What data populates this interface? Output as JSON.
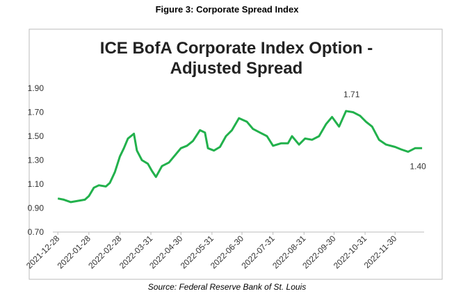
{
  "figure_title": "Figure 3: Corporate Spread Index",
  "source": "Source: Federal Reserve Bank of St. Louis",
  "chart_data": {
    "type": "line",
    "title": "ICE BofA Corporate Index Option - Adjusted Spread",
    "x": [
      "2021-12-28",
      "2022-01-03",
      "2022-01-10",
      "2022-01-17",
      "2022-01-24",
      "2022-01-28",
      "2022-02-02",
      "2022-02-07",
      "2022-02-14",
      "2022-02-18",
      "2022-02-23",
      "2022-02-28",
      "2022-03-04",
      "2022-03-08",
      "2022-03-14",
      "2022-03-17",
      "2022-03-22",
      "2022-03-28",
      "2022-04-01",
      "2022-04-05",
      "2022-04-11",
      "2022-04-18",
      "2022-04-25",
      "2022-04-30",
      "2022-05-06",
      "2022-05-12",
      "2022-05-19",
      "2022-05-24",
      "2022-05-27",
      "2022-06-02",
      "2022-06-08",
      "2022-06-14",
      "2022-06-20",
      "2022-06-27",
      "2022-07-05",
      "2022-07-11",
      "2022-07-18",
      "2022-07-25",
      "2022-07-31",
      "2022-08-08",
      "2022-08-15",
      "2022-08-19",
      "2022-08-26",
      "2022-09-01",
      "2022-09-08",
      "2022-09-15",
      "2022-09-22",
      "2022-09-28",
      "2022-10-05",
      "2022-10-12",
      "2022-10-19",
      "2022-10-26",
      "2022-11-01",
      "2022-11-07",
      "2022-11-14",
      "2022-11-21",
      "2022-11-30",
      "2022-12-06",
      "2022-12-13",
      "2022-12-20",
      "2022-12-27"
    ],
    "series": [
      {
        "color": "#22b14c",
        "values": [
          0.98,
          0.97,
          0.95,
          0.96,
          0.97,
          1.0,
          1.07,
          1.09,
          1.08,
          1.11,
          1.2,
          1.33,
          1.4,
          1.48,
          1.52,
          1.38,
          1.3,
          1.27,
          1.21,
          1.16,
          1.25,
          1.28,
          1.35,
          1.4,
          1.42,
          1.46,
          1.55,
          1.53,
          1.4,
          1.38,
          1.41,
          1.5,
          1.55,
          1.65,
          1.62,
          1.56,
          1.53,
          1.5,
          1.42,
          1.44,
          1.44,
          1.5,
          1.43,
          1.48,
          1.47,
          1.5,
          1.6,
          1.66,
          1.58,
          1.71,
          1.7,
          1.67,
          1.62,
          1.58,
          1.47,
          1.43,
          1.41,
          1.39,
          1.37,
          1.4,
          1.4
        ]
      }
    ],
    "annotations": [
      {
        "x": "2022-10-12",
        "value": 1.71,
        "label": "1.71"
      },
      {
        "x": "2022-12-27",
        "value": 1.4,
        "label": "1.40"
      }
    ],
    "xlim": [
      "2021-12-23",
      "2022-12-29"
    ],
    "xticks": [
      "2021-12-28",
      "2022-01-28",
      "2022-02-28",
      "2022-03-31",
      "2022-04-30",
      "2022-05-31",
      "2022-06-30",
      "2022-07-31",
      "2022-08-31",
      "2022-09-30",
      "2022-10-31",
      "2022-11-30"
    ],
    "ylim": [
      0.7,
      1.9
    ],
    "yticks": [
      {
        "value": 0.7,
        "label": "0.70"
      },
      {
        "value": 0.9,
        "label": "0.90"
      },
      {
        "value": 1.1,
        "label": "1.10"
      },
      {
        "value": 1.3,
        "label": "1.30"
      },
      {
        "value": 1.5,
        "label": "1.50"
      },
      {
        "value": 1.7,
        "label": "1.70"
      },
      {
        "value": 1.9,
        "label": "1.90"
      }
    ],
    "grid": false
  }
}
